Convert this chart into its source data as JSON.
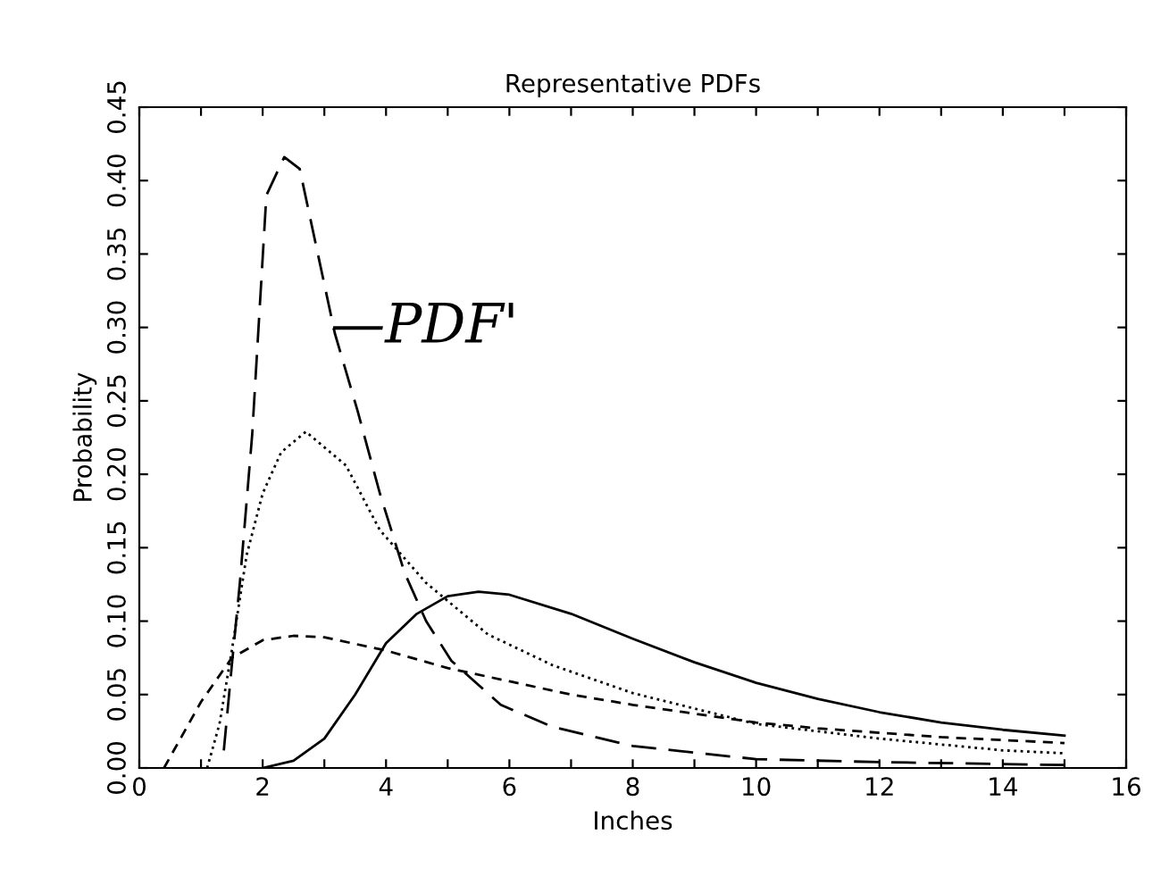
{
  "chart_data": {
    "type": "line",
    "title": "Representative PDFs",
    "xlabel": "Inches",
    "ylabel": "Probability",
    "annotations": [
      {
        "text": "—PDF'",
        "x": 3.1,
        "y": 0.3
      }
    ],
    "series": [
      {
        "color": "#000000",
        "line_style": "dashed",
        "x": [
          1.37,
          1.5,
          1.63,
          1.83,
          2.06,
          2.35,
          2.6,
          2.9,
          3.17,
          3.54,
          3.9,
          4.3,
          4.65,
          5.06,
          5.86,
          6.7,
          8,
          10,
          12,
          15
        ],
        "values": [
          0.012,
          0.07,
          0.126,
          0.227,
          0.39,
          0.416,
          0.408,
          0.349,
          0.296,
          0.243,
          0.187,
          0.133,
          0.1,
          0.073,
          0.043,
          0.028,
          0.015,
          0.006,
          0.004,
          0.002
        ]
      },
      {
        "color": "#000000",
        "line_style": "dotted",
        "x": [
          1.1,
          1.3,
          1.5,
          1.74,
          2.0,
          2.3,
          2.7,
          3.35,
          3.9,
          4.65,
          5.65,
          6.7,
          8,
          10,
          12,
          14,
          15
        ],
        "values": [
          0,
          0.03,
          0.08,
          0.145,
          0.187,
          0.215,
          0.229,
          0.206,
          0.162,
          0.126,
          0.091,
          0.07,
          0.051,
          0.03,
          0.02,
          0.012,
          0.01
        ]
      },
      {
        "color": "#000000",
        "line_style": "dashed",
        "x": [
          0.4,
          1,
          1.5,
          2,
          2.5,
          3,
          4,
          5,
          6,
          7,
          8,
          9,
          10,
          11,
          12,
          13,
          14,
          15
        ],
        "values": [
          0,
          0.045,
          0.075,
          0.087,
          0.09,
          0.089,
          0.08,
          0.068,
          0.059,
          0.05,
          0.043,
          0.037,
          0.031,
          0.027,
          0.024,
          0.021,
          0.019,
          0.017
        ]
      },
      {
        "color": "#000000",
        "line_style": "solid",
        "x": [
          2,
          2.5,
          3,
          3.5,
          4,
          4.5,
          5,
          5.5,
          6,
          7,
          8,
          9,
          10,
          11,
          12,
          13,
          14,
          15
        ],
        "values": [
          0,
          0.005,
          0.02,
          0.05,
          0.085,
          0.105,
          0.117,
          0.12,
          0.118,
          0.105,
          0.088,
          0.072,
          0.058,
          0.047,
          0.038,
          0.031,
          0.026,
          0.022
        ]
      }
    ],
    "xlim": [
      0,
      16
    ],
    "xticks": [
      0,
      {
        "value": 1,
        "label": null
      },
      2,
      {
        "value": 3,
        "label": null
      },
      4,
      {
        "value": 5,
        "label": null
      },
      6,
      {
        "value": 7,
        "label": null
      },
      8,
      {
        "value": 9,
        "label": null
      },
      10,
      {
        "value": 11,
        "label": null
      },
      12,
      {
        "value": 13,
        "label": null
      },
      14,
      {
        "value": 15,
        "label": null
      },
      16
    ],
    "ylim": [
      0,
      0.45
    ],
    "yticks": [
      {
        "value": 0,
        "label": "0.00"
      },
      0.05,
      {
        "value": 0.1,
        "label": "0.10"
      },
      0.15,
      {
        "value": 0.2,
        "label": "0.20"
      },
      0.25,
      {
        "value": 0.3,
        "label": "0.30"
      },
      0.35,
      {
        "value": 0.4,
        "label": "0.40"
      },
      0.45
    ],
    "grid": false,
    "legend": false
  }
}
